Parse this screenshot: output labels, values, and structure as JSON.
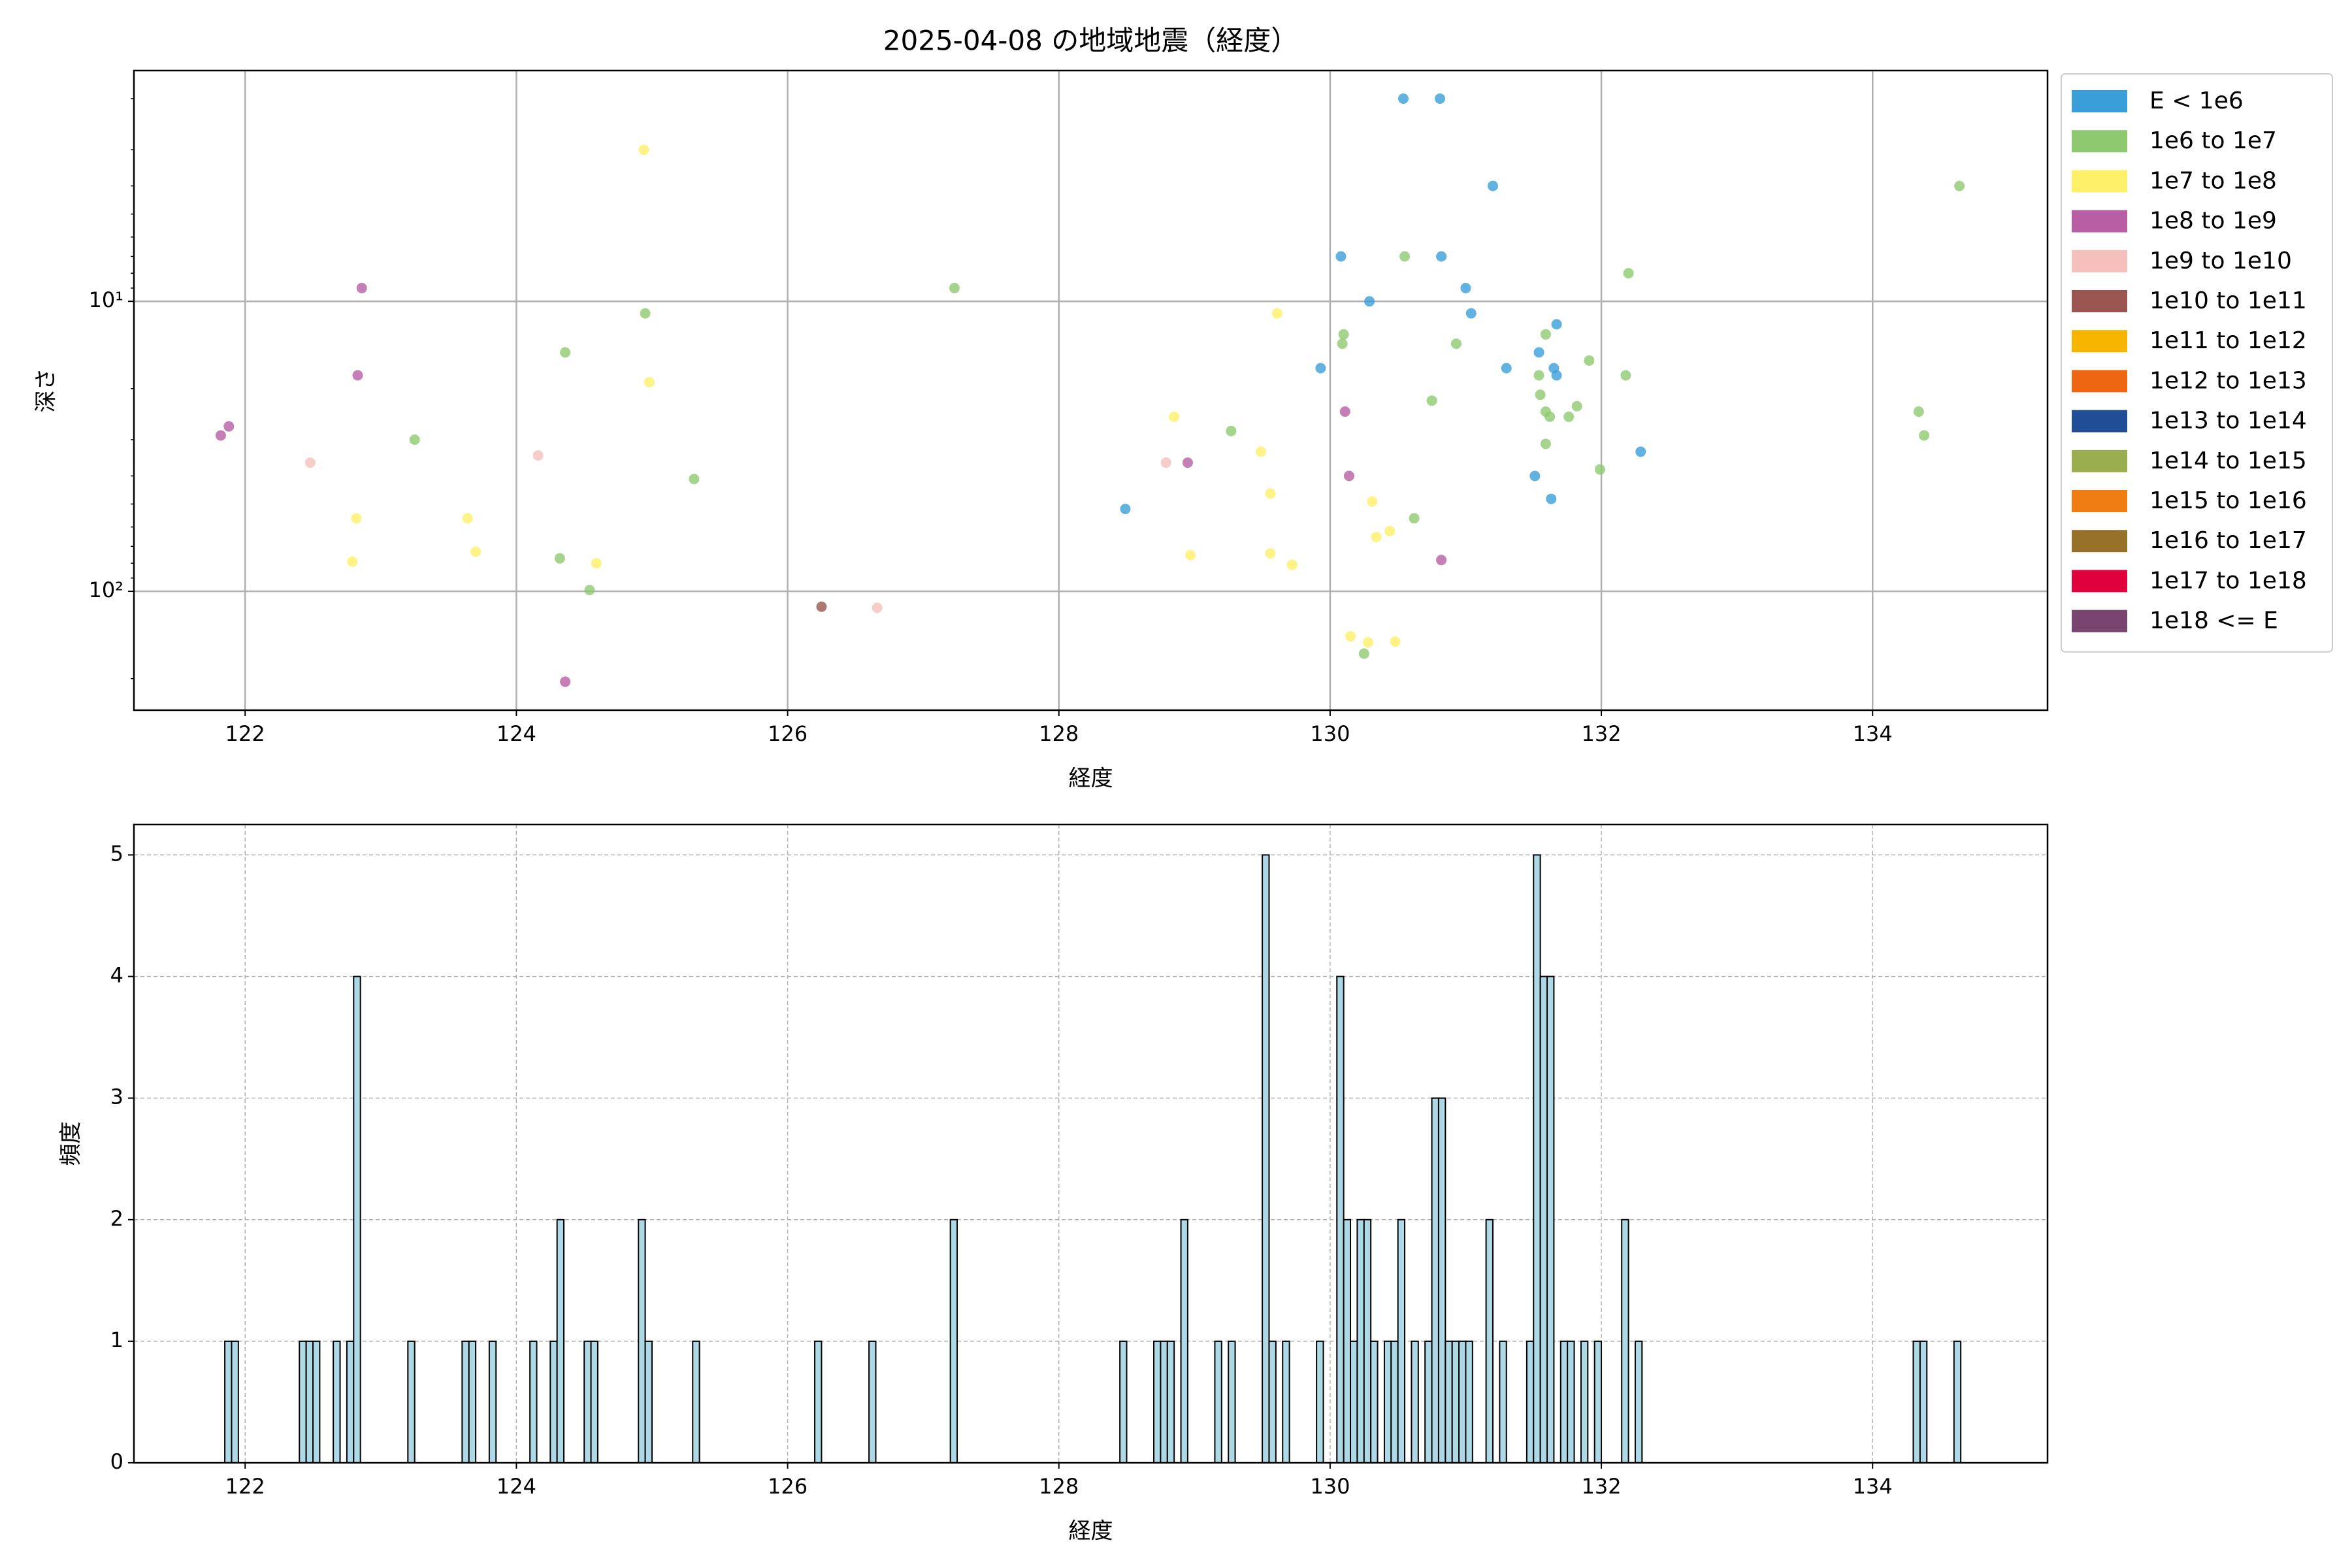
{
  "chart_data": [
    {
      "type": "scatter",
      "title": "2025-04-08 の地域地震（経度）",
      "x_label": "経度",
      "y_label": "深さ",
      "xlim": [
        121.18,
        135.29
      ],
      "xticks": [
        122,
        124,
        126,
        128,
        130,
        132,
        134
      ],
      "ylim": [
        1.6,
        257
      ],
      "yscale": "log",
      "yinvert": true,
      "yticks": [
        {
          "value": 10,
          "label": "10¹"
        },
        {
          "value": 100,
          "label": "10²"
        }
      ],
      "yminorticks": [
        2,
        3,
        4,
        5,
        6,
        7,
        8,
        9,
        20,
        30,
        40,
        50,
        60,
        70,
        80,
        90,
        200
      ],
      "grid": true,
      "legend": "outside upper right",
      "series": [
        {
          "name": "E < 1e6",
          "color": "#3a9fd8",
          "x": [
            130.54,
            130.81,
            131.2,
            130.08,
            130.82,
            130.29,
            131,
            131.04,
            129.93,
            131.3,
            131.67,
            131.54,
            131.65,
            131.67,
            131.51,
            131.63,
            132.29,
            128.49
          ],
          "values": [
            2,
            2,
            4,
            7,
            7,
            10,
            9,
            11,
            17,
            17,
            12,
            15,
            17,
            18,
            40,
            48,
            33,
            52
          ]
        },
        {
          "name": "1e6 to 1e7",
          "color": "#8fc96f",
          "x": [
            127.23,
            124.95,
            124.36,
            123.25,
            125.31,
            124.32,
            124.54,
            130.55,
            130.1,
            130.09,
            130.93,
            132.2,
            131.59,
            131.54,
            131.91,
            132.18,
            130.75,
            131.55,
            131.59,
            131.62,
            131.82,
            131.76,
            131.59,
            131.99,
            134.64,
            134.34,
            134.38,
            130.62,
            130.25,
            129.27
          ],
          "values": [
            9,
            11,
            15,
            30,
            41,
            77,
            99,
            7,
            13,
            14,
            14,
            8,
            13,
            18,
            16,
            18,
            22,
            21,
            24,
            25,
            23,
            25,
            31,
            38,
            4,
            24,
            29,
            56,
            164,
            28
          ]
        },
        {
          "name": "1e7 to 1e8",
          "color": "#fff06a",
          "x": [
            124.94,
            124.98,
            129.61,
            128.85,
            122.82,
            122.79,
            123.64,
            123.7,
            124.59,
            129.49,
            129.56,
            130.31,
            130.44,
            130.34,
            128.97,
            129.56,
            129.72,
            130.15,
            130.28,
            130.48
          ],
          "values": [
            3,
            19,
            11,
            25,
            56,
            79,
            56,
            73,
            80,
            33,
            46,
            49,
            62,
            65,
            75,
            74,
            81,
            143,
            150,
            149
          ]
        },
        {
          "name": "1e8 to 1e9",
          "color": "#b85ea5",
          "x": [
            122.86,
            122.83,
            121.88,
            121.82,
            130.11,
            128.95,
            130.14,
            130.82,
            124.36
          ],
          "values": [
            9,
            18,
            27,
            29,
            24,
            36,
            40,
            78,
            205
          ]
        },
        {
          "name": "1e9 to 1e10",
          "color": "#f5c0bb",
          "x": [
            122.48,
            124.16,
            128.79,
            126.66
          ],
          "values": [
            36,
            34,
            36,
            114
          ]
        },
        {
          "name": "1e10 to 1e11",
          "color": "#9a5550",
          "x": [
            126.25
          ],
          "values": [
            113
          ]
        },
        {
          "name": "1e11 to 1e12",
          "color": "#f7b500",
          "x": [],
          "values": []
        },
        {
          "name": "1e12 to 1e13",
          "color": "#ee6512",
          "x": [],
          "values": []
        },
        {
          "name": "1e13 to 1e14",
          "color": "#1f4e96",
          "x": [],
          "values": []
        },
        {
          "name": "1e14 to 1e15",
          "color": "#9aae50",
          "x": [],
          "values": []
        },
        {
          "name": "1e15 to 1e16",
          "color": "#ef7d12",
          "x": [],
          "values": []
        },
        {
          "name": "1e16 to 1e17",
          "color": "#97702a",
          "x": [],
          "values": []
        },
        {
          "name": "1e17 to 1e18",
          "color": "#e0003c",
          "x": [],
          "values": []
        },
        {
          "name": "1e18 <= E",
          "color": "#7a4470",
          "x": [],
          "values": []
        }
      ]
    },
    {
      "type": "histogram",
      "x_label": "経度",
      "y_label": "頻度",
      "xlim": [
        121.18,
        135.29
      ],
      "xticks": [
        122,
        124,
        126,
        128,
        130,
        132,
        134
      ],
      "ylim": [
        0,
        5.25
      ],
      "yticks": [
        0,
        1,
        2,
        3,
        4,
        5
      ],
      "grid": true,
      "grid_style": "dashed",
      "color": "#add8e6",
      "edgecolor": "#000000",
      "bins": [
        121.8,
        121.85,
        121.9,
        121.95,
        122,
        122.05,
        122.1,
        122.15,
        122.2,
        122.25,
        122.3,
        122.35,
        122.4,
        122.45,
        122.5,
        122.55,
        122.6,
        122.65,
        122.7,
        122.75,
        122.8,
        122.85,
        122.9,
        122.95,
        123,
        123.05,
        123.1,
        123.15,
        123.2,
        123.25,
        123.3,
        123.35,
        123.4,
        123.45,
        123.5,
        123.55,
        123.6,
        123.65,
        123.7,
        123.75,
        123.8,
        123.85,
        123.9,
        123.95,
        124,
        124.05,
        124.1,
        124.15,
        124.2,
        124.25,
        124.3,
        124.35,
        124.4,
        124.45,
        124.5,
        124.55,
        124.6,
        124.65,
        124.7,
        124.75,
        124.8,
        124.85,
        124.9,
        124.95,
        125,
        125.05,
        125.1,
        125.15,
        125.2,
        125.25,
        125.3,
        125.35,
        125.4,
        125.45,
        125.5,
        125.55,
        125.6,
        125.65,
        125.7,
        125.75,
        125.8,
        125.85,
        125.9,
        125.95,
        126,
        126.05,
        126.1,
        126.15,
        126.2,
        126.25,
        126.3,
        126.35,
        126.4,
        126.45,
        126.5,
        126.55,
        126.6,
        126.65,
        126.7,
        126.75,
        126.8,
        126.85,
        126.9,
        126.95,
        127,
        127.05,
        127.1,
        127.15,
        127.2,
        127.25,
        127.3,
        127.35,
        127.4,
        127.45,
        127.5,
        127.55,
        127.6,
        127.65,
        127.7,
        127.75,
        127.8,
        127.85,
        127.9,
        127.95,
        128,
        128.05,
        128.1,
        128.15,
        128.2,
        128.25,
        128.3,
        128.35,
        128.4,
        128.45,
        128.5,
        128.55,
        128.6,
        128.65,
        128.7,
        128.75,
        128.8,
        128.85,
        128.9,
        128.95,
        129,
        129.05,
        129.1,
        129.15,
        129.2,
        129.25,
        129.3,
        129.35,
        129.4,
        129.45,
        129.5,
        129.55,
        129.6,
        129.65,
        129.7,
        129.75,
        129.8,
        129.85,
        129.9,
        129.95,
        130,
        130.05,
        130.1,
        130.15,
        130.2,
        130.25,
        130.3,
        130.35,
        130.4,
        130.45,
        130.5,
        130.55,
        130.6,
        130.65,
        130.7,
        130.75,
        130.8,
        130.85,
        130.9,
        130.95,
        131,
        131.05,
        131.1,
        131.15,
        131.2,
        131.25,
        131.3,
        131.35,
        131.4,
        131.45,
        131.5,
        131.55,
        131.6,
        131.65,
        131.7,
        131.75,
        131.8,
        131.85,
        131.9,
        131.95,
        132,
        132.05,
        132.1,
        132.15,
        132.2,
        132.25,
        132.3,
        132.35,
        132.4,
        132.45,
        132.5,
        132.55,
        132.6,
        132.65,
        132.7,
        132.75,
        132.8,
        132.85,
        132.9,
        132.95,
        133,
        133.05,
        133.1,
        133.15,
        133.2,
        133.25,
        133.3,
        133.35,
        133.4,
        133.45,
        133.5,
        133.55,
        133.6,
        133.65,
        133.7,
        133.75,
        133.8,
        133.85,
        133.9,
        133.95,
        134,
        134.05,
        134.1,
        134.15,
        134.2,
        134.25,
        134.3,
        134.35,
        134.4,
        134.45,
        134.5,
        134.55,
        134.6,
        134.65,
        134.7
      ],
      "values": [
        0,
        1,
        1,
        0,
        0,
        0,
        0,
        0,
        0,
        0,
        0,
        0,
        1,
        1,
        1,
        0,
        0,
        1,
        0,
        1,
        4,
        0,
        0,
        0,
        0,
        0,
        0,
        0,
        1,
        0,
        0,
        0,
        0,
        0,
        0,
        0,
        1,
        1,
        0,
        0,
        1,
        0,
        0,
        0,
        0,
        0,
        1,
        0,
        0,
        1,
        2,
        0,
        0,
        0,
        1,
        1,
        0,
        0,
        0,
        0,
        0,
        0,
        2,
        1,
        0,
        0,
        0,
        0,
        0,
        0,
        1,
        0,
        0,
        0,
        0,
        0,
        0,
        0,
        0,
        0,
        0,
        0,
        0,
        0,
        0,
        0,
        0,
        0,
        1,
        0,
        0,
        0,
        0,
        0,
        0,
        0,
        1,
        0,
        0,
        0,
        0,
        0,
        0,
        0,
        0,
        0,
        0,
        0,
        2,
        0,
        0,
        0,
        0,
        0,
        0,
        0,
        0,
        0,
        0,
        0,
        0,
        0,
        0,
        0,
        0,
        0,
        0,
        0,
        0,
        0,
        0,
        0,
        0,
        1,
        0,
        0,
        0,
        0,
        1,
        1,
        1,
        0,
        2,
        0,
        0,
        0,
        0,
        1,
        0,
        1,
        0,
        0,
        0,
        0,
        5,
        1,
        0,
        1,
        0,
        0,
        0,
        0,
        1,
        0,
        0,
        4,
        2,
        1,
        2,
        2,
        1,
        0,
        1,
        1,
        2,
        0,
        1,
        0,
        1,
        3,
        3,
        1,
        1,
        1,
        1,
        0,
        0,
        2,
        0,
        1,
        0,
        0,
        0,
        1,
        5,
        4,
        4,
        0,
        1,
        1,
        0,
        1,
        0,
        1,
        0,
        0,
        0,
        2,
        0,
        1,
        0,
        0,
        0,
        0,
        0,
        0,
        0,
        0,
        0,
        0,
        0,
        0,
        0,
        0,
        0,
        0,
        0,
        0,
        0,
        0,
        0,
        0,
        0,
        0,
        0,
        0,
        0,
        0,
        0,
        0,
        0,
        0,
        0,
        0,
        0,
        0,
        0,
        0,
        0,
        0,
        1,
        1,
        0,
        0,
        0,
        0,
        1,
        0
      ]
    }
  ]
}
